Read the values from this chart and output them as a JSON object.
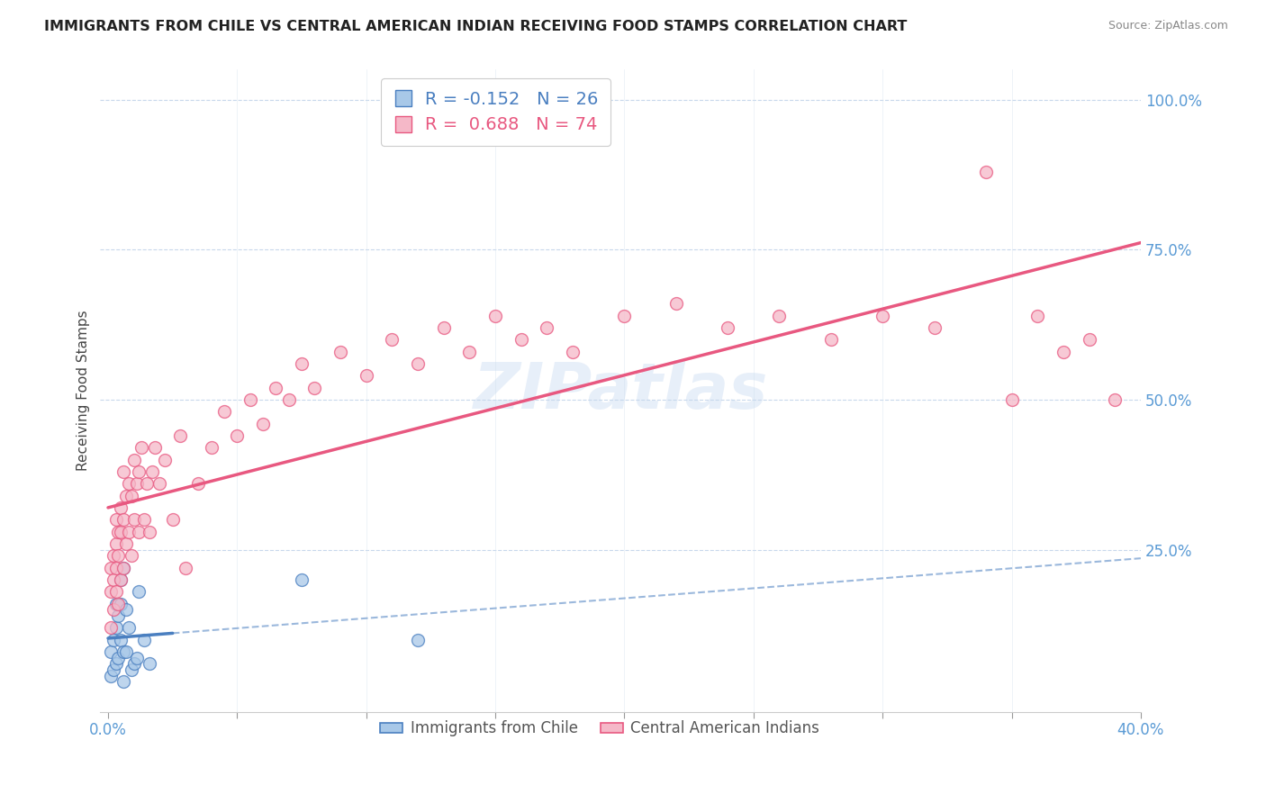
{
  "title": "IMMIGRANTS FROM CHILE VS CENTRAL AMERICAN INDIAN RECEIVING FOOD STAMPS CORRELATION CHART",
  "source": "Source: ZipAtlas.com",
  "ylabel": "Receiving Food Stamps",
  "legend_blue_r": "-0.152",
  "legend_blue_n": "26",
  "legend_pink_r": "0.688",
  "legend_pink_n": "74",
  "legend_label_blue": "Immigrants from Chile",
  "legend_label_pink": "Central American Indians",
  "blue_color": "#a8c8e8",
  "pink_color": "#f5b8c8",
  "blue_line_color": "#4a7fc0",
  "pink_line_color": "#e85880",
  "background_color": "#ffffff",
  "watermark_text": "ZIPatlas",
  "xlim": [
    0.0,
    0.4
  ],
  "ylim": [
    0.0,
    1.05
  ],
  "blue_x": [
    0.001,
    0.001,
    0.002,
    0.002,
    0.003,
    0.003,
    0.003,
    0.004,
    0.004,
    0.005,
    0.005,
    0.005,
    0.006,
    0.006,
    0.006,
    0.007,
    0.007,
    0.008,
    0.009,
    0.01,
    0.011,
    0.012,
    0.014,
    0.016,
    0.075,
    0.12
  ],
  "blue_y": [
    0.04,
    0.08,
    0.05,
    0.1,
    0.06,
    0.12,
    0.16,
    0.07,
    0.14,
    0.1,
    0.16,
    0.2,
    0.03,
    0.08,
    0.22,
    0.15,
    0.08,
    0.12,
    0.05,
    0.06,
    0.07,
    0.18,
    0.1,
    0.06,
    0.2,
    0.1
  ],
  "pink_x": [
    0.001,
    0.001,
    0.001,
    0.002,
    0.002,
    0.002,
    0.003,
    0.003,
    0.003,
    0.003,
    0.004,
    0.004,
    0.004,
    0.005,
    0.005,
    0.005,
    0.006,
    0.006,
    0.006,
    0.007,
    0.007,
    0.008,
    0.008,
    0.009,
    0.009,
    0.01,
    0.01,
    0.011,
    0.012,
    0.012,
    0.013,
    0.014,
    0.015,
    0.016,
    0.017,
    0.018,
    0.02,
    0.022,
    0.025,
    0.028,
    0.03,
    0.035,
    0.04,
    0.045,
    0.05,
    0.055,
    0.06,
    0.065,
    0.07,
    0.075,
    0.08,
    0.09,
    0.1,
    0.11,
    0.12,
    0.13,
    0.14,
    0.15,
    0.16,
    0.17,
    0.18,
    0.2,
    0.22,
    0.24,
    0.26,
    0.28,
    0.3,
    0.32,
    0.34,
    0.35,
    0.36,
    0.37,
    0.38,
    0.39
  ],
  "pink_y": [
    0.12,
    0.18,
    0.22,
    0.15,
    0.2,
    0.24,
    0.18,
    0.22,
    0.26,
    0.3,
    0.16,
    0.24,
    0.28,
    0.2,
    0.28,
    0.32,
    0.22,
    0.3,
    0.38,
    0.26,
    0.34,
    0.28,
    0.36,
    0.24,
    0.34,
    0.3,
    0.4,
    0.36,
    0.28,
    0.38,
    0.42,
    0.3,
    0.36,
    0.28,
    0.38,
    0.42,
    0.36,
    0.4,
    0.3,
    0.44,
    0.22,
    0.36,
    0.42,
    0.48,
    0.44,
    0.5,
    0.46,
    0.52,
    0.5,
    0.56,
    0.52,
    0.58,
    0.54,
    0.6,
    0.56,
    0.62,
    0.58,
    0.64,
    0.6,
    0.62,
    0.58,
    0.64,
    0.66,
    0.62,
    0.64,
    0.6,
    0.64,
    0.62,
    0.88,
    0.5,
    0.64,
    0.58,
    0.6,
    0.5
  ]
}
